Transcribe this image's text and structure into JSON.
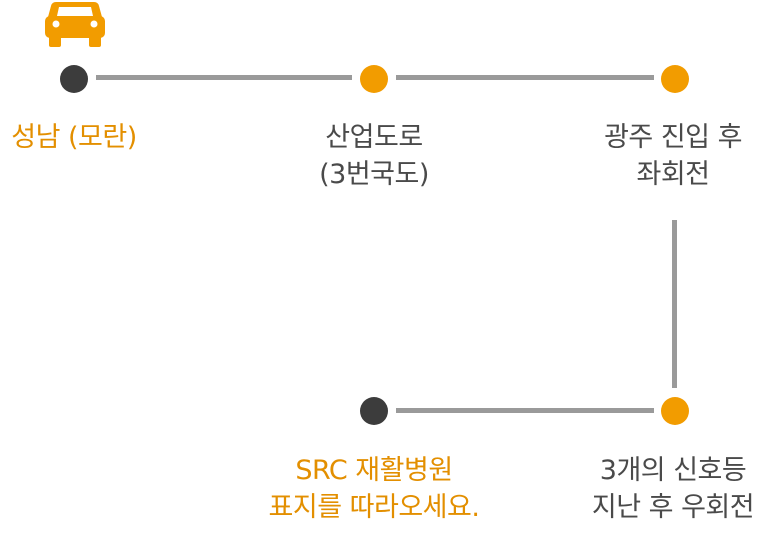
{
  "colors": {
    "accent": "#f29c00",
    "accent_text": "#e38f00",
    "dark_node": "#3c3c3c",
    "line": "#9a9a9a",
    "text": "#4a4a4a"
  },
  "icon": "car-icon",
  "steps": [
    {
      "lines": [
        "성남 (모란)"
      ]
    },
    {
      "lines": [
        "산업도로",
        "(3번국도)"
      ]
    },
    {
      "lines": [
        "광주 진입 후",
        "좌회전"
      ]
    },
    {
      "lines": [
        "3개의 신호등",
        "지난 후 우회전"
      ]
    },
    {
      "lines": [
        "SRC 재활병원",
        "표지를 따라오세요."
      ]
    }
  ]
}
